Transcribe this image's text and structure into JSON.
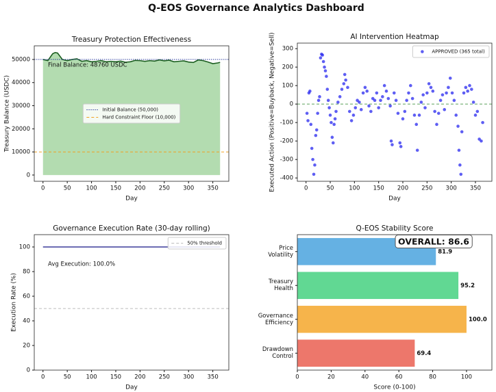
{
  "title": "Q-EOS Governance Analytics Dashboard",
  "chart_data": [
    {
      "type": "area",
      "title": "Treasury Protection Effectiveness",
      "xlabel": "Day",
      "ylabel": "Treasury Balance (USDC)",
      "x": [
        0,
        10,
        20,
        25,
        30,
        40,
        50,
        60,
        70,
        80,
        90,
        100,
        110,
        120,
        130,
        140,
        150,
        160,
        170,
        180,
        190,
        200,
        210,
        220,
        230,
        240,
        250,
        260,
        270,
        280,
        290,
        300,
        310,
        320,
        330,
        340,
        350,
        360,
        365
      ],
      "values": [
        50000,
        49500,
        52500,
        53000,
        52800,
        50000,
        49500,
        50000,
        50300,
        49200,
        49500,
        49000,
        49200,
        49500,
        49000,
        49200,
        49000,
        49300,
        48800,
        49000,
        49600,
        49500,
        49200,
        49500,
        49300,
        49800,
        49400,
        49700,
        49000,
        49200,
        49400,
        48900,
        48700,
        49800,
        49500,
        48900,
        48200,
        48500,
        48760
      ],
      "color": "#1b5e20",
      "fill_color": "#b3dcb0",
      "hlines": [
        {
          "value": 50000,
          "label": "Initial Balance (50,000)",
          "color": "#2c3e9e",
          "style": "dotted"
        },
        {
          "value": 10000,
          "label": "Hard Constraint Floor (10,000)",
          "color": "#f0a020",
          "style": "dashed"
        }
      ],
      "annotation": "Final Balance: 48760 USDC",
      "legend": "center",
      "xlim": [
        -18,
        383
      ],
      "ylim": [
        -2700,
        55900
      ],
      "xticks": [
        0,
        50,
        100,
        150,
        200,
        250,
        300,
        350
      ],
      "yticks": [
        0,
        10000,
        20000,
        30000,
        40000,
        50000
      ]
    },
    {
      "type": "scatter",
      "title": "AI Intervention Heatmap",
      "xlabel": "Day",
      "ylabel": "Executed Action (Positive=Buyback, Negative=Sell)",
      "series": [
        {
          "name": "APPROVED (365 total)",
          "color": "#1a1aee",
          "x": [
            2,
            4,
            6,
            8,
            10,
            12,
            14,
            16,
            18,
            20,
            22,
            24,
            26,
            28,
            30,
            32,
            34,
            36,
            38,
            40,
            42,
            44,
            46,
            48,
            50,
            52,
            54,
            56,
            58,
            60,
            62,
            66,
            70,
            74,
            78,
            80,
            82,
            86,
            90,
            94,
            98,
            102,
            106,
            110,
            114,
            118,
            122,
            126,
            130,
            134,
            138,
            142,
            146,
            150,
            154,
            158,
            162,
            166,
            170,
            174,
            176,
            178,
            182,
            186,
            190,
            194,
            196,
            200,
            204,
            208,
            212,
            216,
            220,
            224,
            228,
            230,
            234,
            238,
            242,
            246,
            250,
            254,
            258,
            262,
            266,
            270,
            274,
            278,
            282,
            286,
            290,
            294,
            298,
            302,
            306,
            310,
            314,
            316,
            318,
            320,
            322,
            326,
            330,
            334,
            338,
            342,
            346,
            350,
            354,
            358,
            362,
            365
          ],
          "values": [
            -50,
            -90,
            60,
            70,
            -110,
            -240,
            -300,
            -380,
            -330,
            -170,
            -140,
            -50,
            20,
            40,
            250,
            270,
            265,
            230,
            200,
            180,
            150,
            80,
            20,
            -20,
            -60,
            -100,
            -180,
            -210,
            -110,
            -80,
            -40,
            10,
            40,
            80,
            110,
            160,
            130,
            90,
            -40,
            -90,
            -60,
            -20,
            20,
            10,
            -30,
            60,
            90,
            70,
            -10,
            -40,
            30,
            20,
            60,
            -20,
            20,
            40,
            100,
            70,
            30,
            -10,
            -200,
            -220,
            60,
            20,
            -50,
            -210,
            -230,
            -80,
            -40,
            20,
            60,
            100,
            30,
            -60,
            -110,
            -250,
            -60,
            10,
            50,
            -20,
            60,
            110,
            90,
            70,
            -40,
            -110,
            -50,
            20,
            50,
            -30,
            60,
            90,
            140,
            60,
            20,
            -60,
            -120,
            -250,
            -330,
            -380,
            -150,
            60,
            90,
            70,
            100,
            80,
            10,
            -60,
            -40,
            -190,
            -200,
            -100
          ]
        }
      ],
      "hlines": [
        {
          "value": 0,
          "color": "#5aa05a",
          "style": "dashed"
        }
      ],
      "legend": "upper right",
      "xlim": [
        -18,
        384
      ],
      "ylim": [
        -418,
        330
      ],
      "xticks": [
        0,
        50,
        100,
        150,
        200,
        250,
        300,
        350
      ],
      "yticks": [
        -400,
        -300,
        -200,
        -100,
        0,
        100,
        200,
        300
      ]
    },
    {
      "type": "line",
      "title": "Governance Execution Rate (30-day rolling)",
      "xlabel": "Day",
      "ylabel": "Execution Rate (%)",
      "x": [
        0,
        365
      ],
      "values": [
        100,
        100
      ],
      "color": "#3a3a9a",
      "hlines": [
        {
          "value": 50,
          "label": "50% threshold",
          "color": "#bbbbbb",
          "style": "dashed"
        }
      ],
      "annotation": "Avg Execution: 100.0%",
      "legend": "upper right",
      "xlim": [
        -18,
        383
      ],
      "ylim": [
        0,
        110
      ],
      "xticks": [
        0,
        50,
        100,
        150,
        200,
        250,
        300,
        350
      ],
      "yticks": [
        0,
        20,
        40,
        60,
        80,
        100
      ]
    },
    {
      "type": "barh",
      "title": "Q-EOS Stability Score",
      "xlabel": "Score (0-100)",
      "categories": [
        "Price\nVolatility",
        "Treasury\nHealth",
        "Governance\nEfficiency",
        "Drawdown\nControl"
      ],
      "values": [
        81.9,
        95.2,
        100.0,
        69.4
      ],
      "value_labels": [
        "81.9",
        "95.2",
        "100.0",
        "69.4"
      ],
      "colors": [
        "#5dade2",
        "#58d68d",
        "#f5b041",
        "#ec7063"
      ],
      "annotation": "OVERALL: 86.6",
      "xlim": [
        0,
        115
      ],
      "xticks": [
        0,
        20,
        40,
        60,
        80,
        100
      ]
    }
  ]
}
